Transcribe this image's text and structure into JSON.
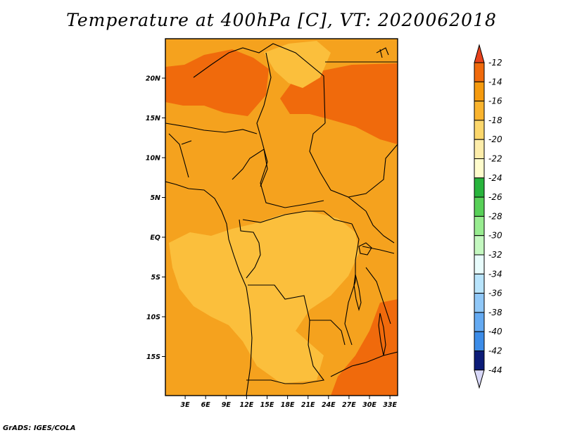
{
  "title": "Temperature at 400hPa [C], VT: 2020062018",
  "credit": "GrADS: IGES/COLA",
  "map": {
    "lat_ticks": [
      {
        "lat": 20,
        "label": "20N"
      },
      {
        "lat": 15,
        "label": "15N"
      },
      {
        "lat": 10,
        "label": "10N"
      },
      {
        "lat": 5,
        "label": "5N"
      },
      {
        "lat": 0,
        "label": "EQ"
      },
      {
        "lat": -5,
        "label": "5S"
      },
      {
        "lat": -10,
        "label": "10S"
      },
      {
        "lat": -15,
        "label": "15S"
      }
    ],
    "lon_ticks": [
      {
        "lon": 3,
        "label": "3E"
      },
      {
        "lon": 6,
        "label": "6E"
      },
      {
        "lon": 9,
        "label": "9E"
      },
      {
        "lon": 12,
        "label": "12E"
      },
      {
        "lon": 15,
        "label": "15E"
      },
      {
        "lon": 18,
        "label": "18E"
      },
      {
        "lon": 21,
        "label": "21E"
      },
      {
        "lon": 24,
        "label": "24E"
      },
      {
        "lon": 27,
        "label": "27E"
      },
      {
        "lon": 30,
        "label": "30E"
      },
      {
        "lon": 33,
        "label": "33E"
      }
    ]
  },
  "colorbar": {
    "levels": [
      {
        "label": "-12",
        "color": "#f06a0c"
      },
      {
        "label": "-14",
        "color": "#f59a0e"
      },
      {
        "label": "-16",
        "color": "#fab42e"
      },
      {
        "label": "-18",
        "color": "#fcd76c"
      },
      {
        "label": "-20",
        "color": "#fdedaa"
      },
      {
        "label": "-22",
        "color": "#fffccc"
      },
      {
        "label": "-24",
        "color": "#28b43c"
      },
      {
        "label": "-26",
        "color": "#58d058"
      },
      {
        "label": "-28",
        "color": "#98ec90"
      },
      {
        "label": "-30",
        "color": "#c4f8c0"
      },
      {
        "label": "-32",
        "color": "#e8fcfc"
      },
      {
        "label": "-34",
        "color": "#b8e4fc"
      },
      {
        "label": "-36",
        "color": "#90c8f8"
      },
      {
        "label": "-38",
        "color": "#64aaf2"
      },
      {
        "label": "-40",
        "color": "#3c8ce8"
      },
      {
        "label": "-42",
        "color": "#2068d8"
      },
      {
        "label": "-44",
        "color": "#1448b8"
      }
    ],
    "bottom_color": "#d8d8f8",
    "top_color": "#e8421c",
    "lowest_color": "#0c1c78"
  },
  "fills": {
    "main": "#f5a21e",
    "dark": "#f06a0c",
    "light": "#fbbf3c"
  }
}
